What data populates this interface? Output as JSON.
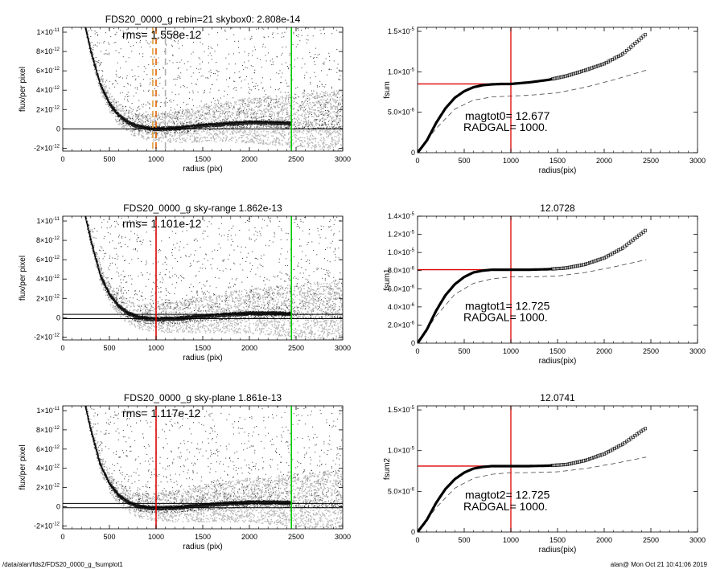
{
  "footer": {
    "path": "/data/alan/fds2/FDS20_0000_g_fsumplot1",
    "stamp": "alan@  Mon Oct 21 10:41:06 2019"
  },
  "chart_data": [
    {
      "type": "scatter",
      "title": "FDS20_0000_g rebin=21    skybox0:  2.808e-14",
      "annotation": "rms= 1.558e-12",
      "xlabel": "radius (pix)",
      "ylabel": "flux/per pixel",
      "xlim": [
        0,
        3000
      ],
      "ylim": [
        -2.3e-12,
        1.05e-11
      ],
      "xticks": [
        "0",
        "500",
        "1000",
        "1500",
        "2000",
        "2500",
        "3000"
      ],
      "yticks": [
        {
          "v": -2e-12,
          "m": "-2",
          "e": "-12"
        },
        {
          "v": 0,
          "m": "0",
          "e": ""
        },
        {
          "v": 2e-12,
          "m": "2",
          "e": "-12"
        },
        {
          "v": 4e-12,
          "m": "4",
          "e": "-12"
        },
        {
          "v": 6e-12,
          "m": "6",
          "e": "-12"
        },
        {
          "v": 8e-12,
          "m": "8",
          "e": "-12"
        },
        {
          "v": 1e-11,
          "m": "1",
          "e": "-11"
        }
      ],
      "vlines": [
        {
          "x": 1000,
          "color": "#e06000",
          "style": "dashed"
        },
        {
          "x": 965,
          "color": "#e0a040",
          "style": "dashed"
        },
        {
          "x": 1100,
          "color": "#b0b0b0",
          "style": "dashed"
        },
        {
          "x": 2450,
          "color": "#00cc00",
          "style": "solid"
        }
      ],
      "hlines": [
        {
          "y": 0,
          "color": "#000000"
        }
      ],
      "background_scatter": "#aaaaaa",
      "profile": {
        "x": [
          240,
          300,
          400,
          500,
          600,
          700,
          800,
          900,
          1000,
          1200,
          1500,
          1800,
          2000,
          2200,
          2450
        ],
        "y": [
          1.05e-11,
          8e-12,
          4.6e-12,
          2.6e-12,
          1.4e-12,
          7e-13,
          3e-13,
          1.2e-13,
          5e-14,
          1e-13,
          4e-13,
          6e-13,
          7e-13,
          7e-13,
          6e-13
        ]
      }
    },
    {
      "type": "scatter",
      "title": "FDS20_0000_g sky-range  1.862e-13",
      "annotation": "rms= 1.101e-12",
      "xlabel": "radius (pix)",
      "ylabel": "flux/per pixel",
      "xlim": [
        0,
        3000
      ],
      "ylim": [
        -2.3e-12,
        1.05e-11
      ],
      "xticks": [
        "0",
        "500",
        "1000",
        "1500",
        "2000",
        "2500",
        "3000"
      ],
      "yticks": [
        {
          "v": -2e-12,
          "m": "-2",
          "e": "-12"
        },
        {
          "v": 0,
          "m": "0",
          "e": ""
        },
        {
          "v": 2e-12,
          "m": "2",
          "e": "-12"
        },
        {
          "v": 4e-12,
          "m": "4",
          "e": "-12"
        },
        {
          "v": 6e-12,
          "m": "6",
          "e": "-12"
        },
        {
          "v": 8e-12,
          "m": "8",
          "e": "-12"
        },
        {
          "v": 1e-11,
          "m": "1",
          "e": "-11"
        }
      ],
      "vlines": [
        {
          "x": 1000,
          "color": "#dd0000",
          "style": "solid"
        },
        {
          "x": 2450,
          "color": "#00cc00",
          "style": "solid"
        }
      ],
      "hlines": [
        {
          "y": 3.5e-13,
          "color": "#000000"
        },
        {
          "y": -1e-13,
          "color": "#000000"
        }
      ],
      "background_scatter": "#aaaaaa",
      "profile": {
        "x": [
          240,
          300,
          400,
          500,
          600,
          700,
          800,
          900,
          1000,
          1200,
          1500,
          1800,
          2000,
          2200,
          2450
        ],
        "y": [
          1.05e-11,
          8e-12,
          4.4e-12,
          2.4e-12,
          1.2e-12,
          5e-13,
          1e-13,
          -5e-14,
          -1e-13,
          -5e-14,
          2e-13,
          4e-13,
          5e-13,
          5e-13,
          4.5e-13
        ]
      }
    },
    {
      "type": "scatter",
      "title": "FDS20_0000_g sky-plane  1.861e-13",
      "annotation": "rms= 1.117e-12",
      "xlabel": "radius (pix)",
      "ylabel": "flux/per pixel",
      "xlim": [
        0,
        3000
      ],
      "ylim": [
        -2.3e-12,
        1.05e-11
      ],
      "xticks": [
        "0",
        "500",
        "1000",
        "1500",
        "2000",
        "2500",
        "3000"
      ],
      "yticks": [
        {
          "v": -2e-12,
          "m": "-2",
          "e": "-12"
        },
        {
          "v": 0,
          "m": "0",
          "e": ""
        },
        {
          "v": 2e-12,
          "m": "2",
          "e": "-12"
        },
        {
          "v": 4e-12,
          "m": "4",
          "e": "-12"
        },
        {
          "v": 6e-12,
          "m": "6",
          "e": "-12"
        },
        {
          "v": 8e-12,
          "m": "8",
          "e": "-12"
        },
        {
          "v": 1e-11,
          "m": "1",
          "e": "-11"
        }
      ],
      "vlines": [
        {
          "x": 1000,
          "color": "#dd0000",
          "style": "solid"
        },
        {
          "x": 2450,
          "color": "#00cc00",
          "style": "solid"
        }
      ],
      "hlines": [
        {
          "y": 3.5e-13,
          "color": "#000000"
        },
        {
          "y": -1e-13,
          "color": "#000000"
        }
      ],
      "background_scatter": "#aaaaaa",
      "profile": {
        "x": [
          240,
          300,
          400,
          500,
          600,
          700,
          800,
          900,
          1000,
          1200,
          1500,
          1800,
          2000,
          2200,
          2450
        ],
        "y": [
          1.05e-11,
          8e-12,
          4.4e-12,
          2.4e-12,
          1.2e-12,
          5e-13,
          1e-13,
          -5e-14,
          -1e-13,
          -5e-14,
          2e-13,
          4e-13,
          5e-13,
          5e-13,
          4.5e-13
        ]
      }
    },
    {
      "type": "line",
      "title": "",
      "xlabel": "radius(pix)",
      "ylabel": "fsum",
      "xlim": [
        0,
        3000
      ],
      "ylim": [
        0,
        1.55e-05
      ],
      "xticks": [
        "0",
        "500",
        "1000",
        "1500",
        "2000",
        "2500",
        "3000"
      ],
      "yticks": [
        {
          "v": 0,
          "m": "0",
          "e": ""
        },
        {
          "v": 5e-06,
          "m": "5.0",
          "e": "-6"
        },
        {
          "v": 1e-05,
          "m": "1.0",
          "e": "-5"
        },
        {
          "v": 1.5e-05,
          "m": "1.5",
          "e": "-5"
        }
      ],
      "annotations": [
        "magtot0=  12.677",
        "RADGAL=   1000."
      ],
      "vline": {
        "x": 1000,
        "color": "#dd0000"
      },
      "hline": {
        "y": 8.5e-06,
        "color": "#dd0000"
      },
      "series": [
        {
          "style": "markers",
          "x": [
            0,
            100,
            200,
            300,
            400,
            500,
            600,
            700,
            800,
            900,
            1000,
            1200,
            1400,
            1600,
            1800,
            2000,
            2200,
            2450
          ],
          "y": [
            0,
            1.5e-06,
            3.7e-06,
            5.5e-06,
            6.8e-06,
            7.6e-06,
            8.1e-06,
            8.35e-06,
            8.45e-06,
            8.5e-06,
            8.5e-06,
            8.7e-06,
            9e-06,
            9.5e-06,
            1.02e-05,
            1.1e-05,
            1.22e-05,
            1.47e-05
          ]
        },
        {
          "style": "dashed",
          "x": [
            0,
            200,
            400,
            600,
            800,
            1000,
            1200,
            1500,
            1800,
            2100,
            2450
          ],
          "y": [
            0,
            3e-06,
            5.4e-06,
            6.5e-06,
            6.9e-06,
            7e-06,
            7.1e-06,
            7.4e-06,
            8.1e-06,
            9e-06,
            1.02e-05
          ]
        }
      ]
    },
    {
      "type": "line",
      "title": "12.0728",
      "xlabel": "radius(pix)",
      "ylabel": "fsum1",
      "xlim": [
        0,
        3000
      ],
      "ylim": [
        0,
        1.4e-05
      ],
      "xticks": [
        "0",
        "500",
        "1000",
        "1500",
        "2000",
        "2500",
        "3000"
      ],
      "yticks": [
        {
          "v": 0,
          "m": "0",
          "e": ""
        },
        {
          "v": 2e-06,
          "m": "2.0",
          "e": "-6"
        },
        {
          "v": 4e-06,
          "m": "4.0",
          "e": "-6"
        },
        {
          "v": 6e-06,
          "m": "6.0",
          "e": "-6"
        },
        {
          "v": 8e-06,
          "m": "8.0",
          "e": "-6"
        },
        {
          "v": 1e-05,
          "m": "1.0",
          "e": "-5"
        },
        {
          "v": 1.2e-05,
          "m": "1.2",
          "e": "-5"
        },
        {
          "v": 1.4e-05,
          "m": "1.4",
          "e": "-5"
        }
      ],
      "annotations": [
        "magtot1=  12.725",
        "RADGAL=   1000."
      ],
      "vline": {
        "x": 1000,
        "color": "#dd0000"
      },
      "hline": {
        "y": 8.1e-06,
        "color": "#dd0000"
      },
      "series": [
        {
          "style": "markers",
          "x": [
            0,
            100,
            200,
            300,
            400,
            500,
            600,
            700,
            800,
            900,
            1000,
            1200,
            1400,
            1600,
            1800,
            2000,
            2200,
            2450
          ],
          "y": [
            0,
            1.5e-06,
            3.6e-06,
            5.3e-06,
            6.5e-06,
            7.3e-06,
            7.8e-06,
            8e-06,
            8.1e-06,
            8.1e-06,
            8.1e-06,
            8.1e-06,
            8.15e-06,
            8.3e-06,
            8.7e-06,
            9.4e-06,
            1.05e-05,
            1.25e-05
          ]
        },
        {
          "style": "dashed",
          "x": [
            0,
            200,
            400,
            600,
            800,
            1000,
            1200,
            1500,
            1800,
            2100,
            2450
          ],
          "y": [
            0,
            3e-06,
            5.4e-06,
            6.6e-06,
            7.1e-06,
            7.3e-06,
            7.3e-06,
            7.4e-06,
            7.8e-06,
            8.4e-06,
            9.2e-06
          ]
        }
      ]
    },
    {
      "type": "line",
      "title": "12.0741",
      "xlabel": "radius(pix)",
      "ylabel": "fsum2",
      "xlim": [
        0,
        3000
      ],
      "ylim": [
        0,
        1.55e-05
      ],
      "xticks": [
        "0",
        "500",
        "1000",
        "1500",
        "2000",
        "2500",
        "3000"
      ],
      "yticks": [
        {
          "v": 0,
          "m": "0",
          "e": ""
        },
        {
          "v": 5e-06,
          "m": "5.0",
          "e": "-6"
        },
        {
          "v": 1e-05,
          "m": "1.0",
          "e": "-5"
        },
        {
          "v": 1.5e-05,
          "m": "1.5",
          "e": "-5"
        }
      ],
      "annotations": [
        "magtot2=  12.725",
        "RADGAL=   1000."
      ],
      "vline": {
        "x": 1000,
        "color": "#dd0000"
      },
      "hline": {
        "y": 8.1e-06,
        "color": "#dd0000"
      },
      "series": [
        {
          "style": "markers",
          "x": [
            0,
            100,
            200,
            300,
            400,
            500,
            600,
            700,
            800,
            900,
            1000,
            1200,
            1400,
            1600,
            1800,
            2000,
            2200,
            2450
          ],
          "y": [
            0,
            1.5e-06,
            3.6e-06,
            5.3e-06,
            6.5e-06,
            7.3e-06,
            7.8e-06,
            8e-06,
            8.1e-06,
            8.1e-06,
            8.1e-06,
            8.1e-06,
            8.15e-06,
            8.3e-06,
            8.8e-06,
            9.6e-06,
            1.08e-05,
            1.28e-05
          ]
        },
        {
          "style": "dashed",
          "x": [
            0,
            200,
            400,
            600,
            800,
            1000,
            1200,
            1500,
            1800,
            2100,
            2450
          ],
          "y": [
            0,
            3e-06,
            5.4e-06,
            6.6e-06,
            7.1e-06,
            7.3e-06,
            7.3e-06,
            7.4e-06,
            7.8e-06,
            8.4e-06,
            9.2e-06
          ]
        }
      ]
    }
  ]
}
